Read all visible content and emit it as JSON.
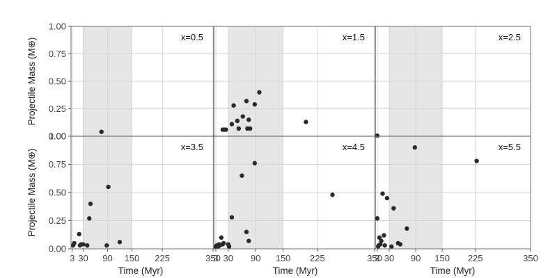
{
  "chart_data": {
    "type": "scatter",
    "facet_layout": "3 columns x 2 rows",
    "xlabel": "Time (Myr)",
    "ylabel": "Projectile Mass (M⊕)",
    "xlim": [
      0,
      350
    ],
    "ylim": [
      0,
      1
    ],
    "x_ticks": [
      3,
      30,
      90,
      150,
      225,
      350
    ],
    "y_ticks": [
      0.0,
      0.25,
      0.5,
      0.75,
      1.0
    ],
    "y_tick_labels": [
      "0.00",
      "0.25",
      "0.50",
      "0.75",
      "1.00"
    ],
    "shaded_x_range": [
      30,
      150
    ],
    "grid": true,
    "panels": [
      {
        "label": "x=0.5",
        "row": 0,
        "col": 0,
        "points": [
          [
            75,
            0.04
          ]
        ]
      },
      {
        "label": "x=1.5",
        "row": 0,
        "col": 1,
        "points": [
          [
            18,
            0.06
          ],
          [
            22,
            0.06
          ],
          [
            25,
            0.06
          ],
          [
            38,
            0.11
          ],
          [
            42,
            0.28
          ],
          [
            50,
            0.14
          ],
          [
            53,
            0.07
          ],
          [
            62,
            0.18
          ],
          [
            70,
            0.32
          ],
          [
            72,
            0.07
          ],
          [
            75,
            0.15
          ],
          [
            78,
            0.07
          ],
          [
            88,
            0.29
          ],
          [
            98,
            0.4
          ],
          [
            200,
            0.13
          ]
        ]
      },
      {
        "label": "x=2.5",
        "row": 0,
        "col": 2,
        "points": [
          [
            3,
            0.005
          ]
        ]
      },
      {
        "label": "x=3.5",
        "row": 1,
        "col": 0,
        "points": [
          [
            5,
            0.03
          ],
          [
            8,
            0.05
          ],
          [
            20,
            0.13
          ],
          [
            22,
            0.03
          ],
          [
            25,
            0.04
          ],
          [
            30,
            0.04
          ],
          [
            40,
            0.03
          ],
          [
            45,
            0.27
          ],
          [
            48,
            0.4
          ],
          [
            88,
            0.03
          ],
          [
            92,
            0.55
          ],
          [
            120,
            0.06
          ]
        ]
      },
      {
        "label": "x=4.5",
        "row": 1,
        "col": 1,
        "points": [
          [
            3,
            0.02
          ],
          [
            5,
            0.03
          ],
          [
            8,
            0.02
          ],
          [
            10,
            0.04
          ],
          [
            12,
            0.03
          ],
          [
            15,
            0.1
          ],
          [
            18,
            0.04
          ],
          [
            20,
            0.05
          ],
          [
            30,
            0.04
          ],
          [
            32,
            0.02
          ],
          [
            38,
            0.28
          ],
          [
            60,
            0.65
          ],
          [
            70,
            0.15
          ],
          [
            75,
            0.07
          ],
          [
            88,
            0.76
          ],
          [
            258,
            0.48
          ]
        ]
      },
      {
        "label": "x=5.5",
        "row": 1,
        "col": 2,
        "points": [
          [
            3,
            0.27
          ],
          [
            5,
            0.02
          ],
          [
            6,
            0.03
          ],
          [
            8,
            0.1
          ],
          [
            10,
            0.04
          ],
          [
            12,
            0.07
          ],
          [
            15,
            0.49
          ],
          [
            18,
            0.12
          ],
          [
            20,
            0.03
          ],
          [
            25,
            0.45
          ],
          [
            35,
            0.02
          ],
          [
            40,
            0.36
          ],
          [
            50,
            0.05
          ],
          [
            55,
            0.04
          ],
          [
            70,
            0.18
          ],
          [
            88,
            0.9
          ],
          [
            228,
            0.78
          ]
        ]
      }
    ]
  }
}
